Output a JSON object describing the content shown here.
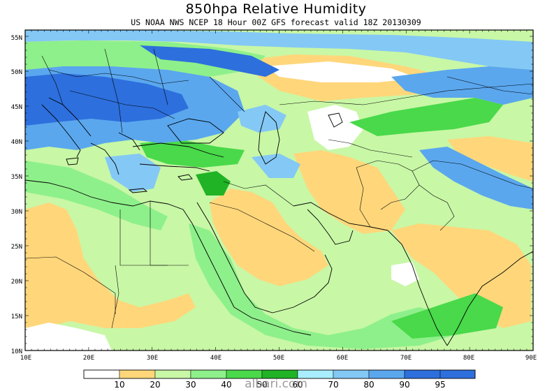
{
  "title": "850hpa Relative Humidity",
  "subtitle": "US NOAA NWS NCEP 18 Hour 00Z GFS forecast valid 18Z 20130309",
  "map": {
    "lat_labels": [
      "55N",
      "50N",
      "45N",
      "40N",
      "35N",
      "30N",
      "25N",
      "20N",
      "15N",
      "10N"
    ],
    "lon_labels": [
      "10E",
      "20E",
      "30E",
      "40E",
      "50E",
      "60E",
      "70E",
      "80E",
      "90E"
    ]
  },
  "legend": {
    "colors": [
      "#ffffff",
      "#ffd77a",
      "#c8f7a6",
      "#8ef08a",
      "#49d94a",
      "#20b325",
      "#a8eeff",
      "#84c8f5",
      "#5aa7ee",
      "#2d6fdd"
    ],
    "labels": [
      "10",
      "20",
      "30",
      "40",
      "50",
      "60",
      "70",
      "80",
      "90",
      "95"
    ]
  },
  "watermark": "albari.com",
  "colors": {
    "coast": "#000000",
    "border": "#000000"
  }
}
